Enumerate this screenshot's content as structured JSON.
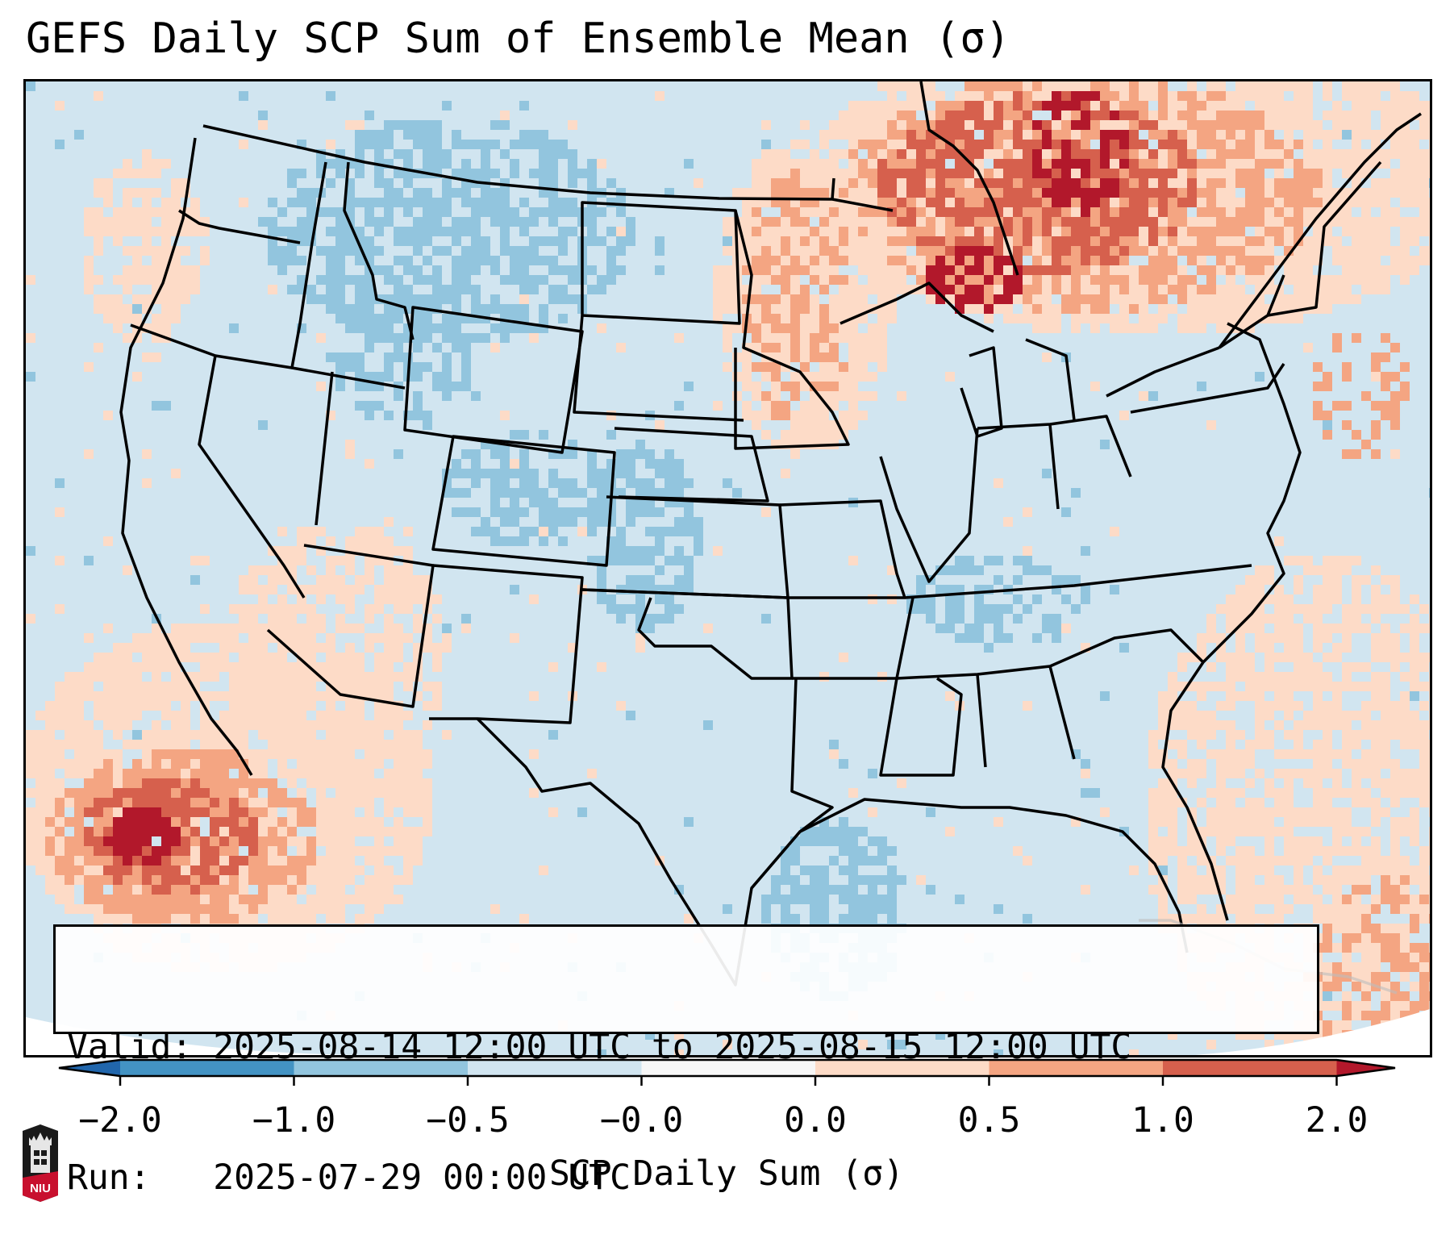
{
  "title": "GEFS Daily SCP Sum of Ensemble Mean (σ)",
  "info_box": {
    "valid_line": "Valid: 2025-08-14 12:00 UTC to 2025-08-15 12:00 UTC",
    "run_line": "Run:   2025-07-29 00:00 UTC"
  },
  "colorbar": {
    "label": "SCP Daily Sum (σ)",
    "tick_labels": [
      "−2.0",
      "−1.0",
      "−0.5",
      "−0.0",
      "0.0",
      "0.5",
      "1.0",
      "2.0"
    ],
    "bins": [
      {
        "range": "< -2.0",
        "color": "#2166ac"
      },
      {
        "range": "-2.0 to -1.0",
        "color": "#4393c3"
      },
      {
        "range": "-1.0 to -0.5",
        "color": "#92c5de"
      },
      {
        "range": "-0.5 to -0.0",
        "color": "#d1e5f0"
      },
      {
        "range": "-0.0 to 0.0",
        "color": "#f7f7f7"
      },
      {
        "range": "0.0 to 0.5",
        "color": "#fddbc7"
      },
      {
        "range": "0.5 to 1.0",
        "color": "#f4a582"
      },
      {
        "range": "1.0 to 2.0",
        "color": "#d6604d"
      },
      {
        "range": "> 2.0",
        "color": "#b2182b"
      }
    ],
    "extend": "both"
  },
  "logo": {
    "text": "NIU",
    "icon": "niu-university-logo-icon"
  },
  "map": {
    "projection": "Lambert conformal (CONUS)",
    "background_color": "#d1e5f0",
    "regions": [
      {
        "name": "Northern Rockies / Montana / Alberta",
        "category": "-1.0 to -0.5"
      },
      {
        "name": "Colorado / Western Kansas",
        "category": "-1.0 to -0.5"
      },
      {
        "name": "Northwest Gulf of Mexico",
        "category": "-1.0 to -0.5"
      },
      {
        "name": "Tennessee Valley",
        "category": "-1.0 to -0.5"
      },
      {
        "name": "Ontario / Upper Great Lakes",
        "category": "1.0 to 2.0"
      },
      {
        "name": "Hudson Bay south / Quebec",
        "category": "> 2.0"
      },
      {
        "name": "Pacific off Baja California",
        "category": "> 2.0"
      },
      {
        "name": "Desert Southwest / Arizona",
        "category": "0.0 to 0.5"
      },
      {
        "name": "Western Atlantic / Florida",
        "category": "0.0 to 0.5"
      },
      {
        "name": "Upper Midwest / Minnesota",
        "category": "0.5 to 1.0"
      }
    ]
  }
}
